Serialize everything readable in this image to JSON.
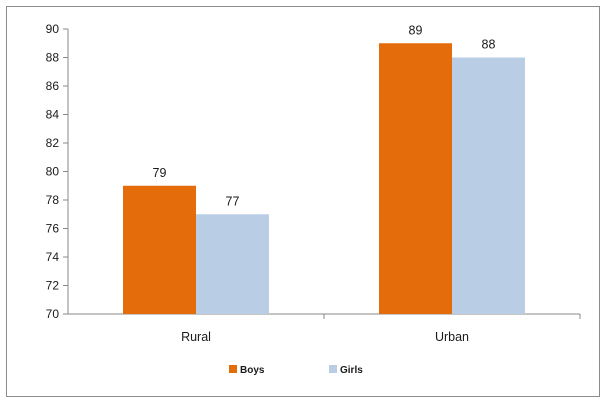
{
  "chart_data": {
    "type": "bar",
    "categories": [
      "Rural",
      "Urban"
    ],
    "series": [
      {
        "name": "Boys",
        "values": [
          79,
          89
        ],
        "color": "#E46C0A"
      },
      {
        "name": "Girls",
        "values": [
          77,
          88
        ],
        "color": "#B9CDE5"
      }
    ],
    "ylim": [
      70,
      90
    ],
    "yticks": [
      70,
      72,
      74,
      76,
      78,
      80,
      82,
      84,
      86,
      88,
      90
    ],
    "data_labels": true,
    "grid": false,
    "legend_position": "bottom",
    "title": "",
    "xlabel": "",
    "ylabel": ""
  }
}
